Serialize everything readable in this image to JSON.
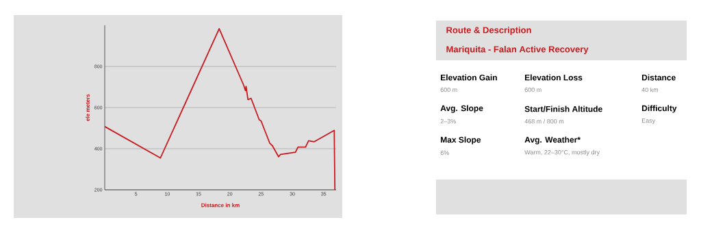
{
  "chart_data": [
    {
      "type": "line",
      "xlabel": "Distance in km",
      "ylabel": "ele meters",
      "x": [
        0,
        8.9,
        18.3,
        22.2,
        22.5,
        22.6,
        22.9,
        23.4,
        24.7,
        25.0,
        26.4,
        26.8,
        27.8,
        28.1,
        30.5,
        30.9,
        32.1,
        32.6,
        33.5,
        36.7,
        36.8
      ],
      "series": [
        {
          "color": "#c8191e",
          "values": [
            508,
            355,
            984,
            710,
            683,
            703,
            639,
            645,
            541,
            535,
            426,
            415,
            361,
            372,
            383,
            408,
            408,
            439,
            434,
            489,
            200
          ]
        }
      ],
      "xlim": [
        0,
        37
      ],
      "ylim": [
        200,
        1000
      ],
      "xticks": [
        5,
        10,
        15,
        20,
        25,
        30,
        35
      ],
      "yticks": [
        200,
        400,
        600,
        800
      ],
      "grid": "y"
    },
    {
      "type": "other",
      "title": "Route & Description",
      "subtitle": "Mariquita - Falan Active Recovery",
      "annotations": [
        "Elevation Gain",
        "600 m",
        "Elevation Loss",
        "600 m",
        "Distance",
        "40 km",
        "Avg. Slope",
        "2–3%",
        "Start/Finish Altitude",
        "468 m / 800 m",
        "Difficulty",
        "Easy",
        "Max Slope",
        "6%",
        "Avg. Weather*",
        "Warm, 22–30°C, mostly dry"
      ]
    }
  ]
}
